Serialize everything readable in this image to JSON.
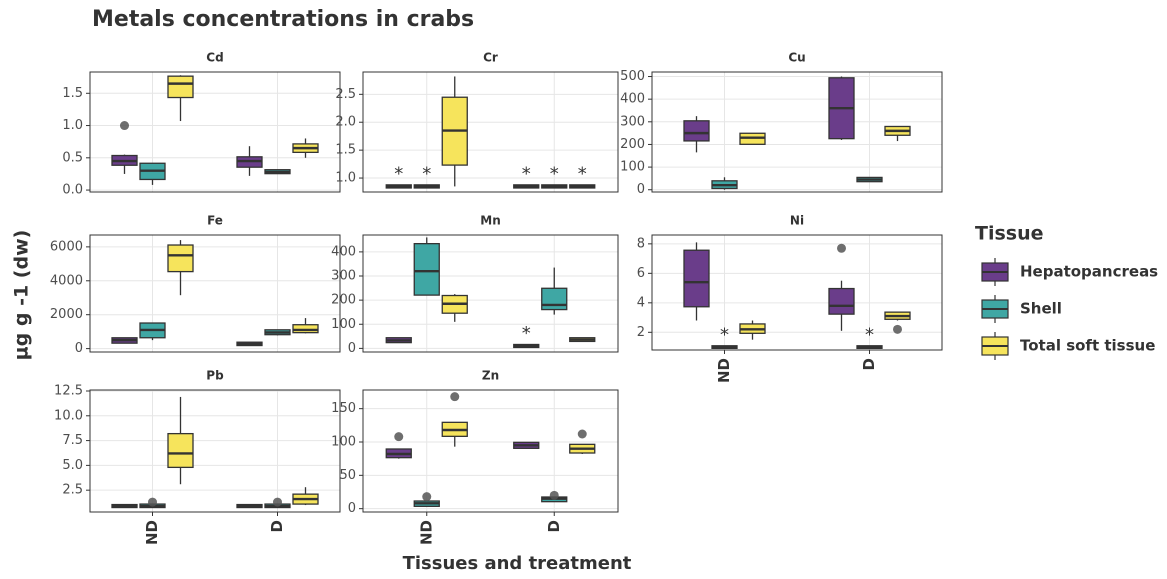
{
  "title": "Metals concentrations in crabs",
  "ylabel": "µg g -1 (dw)",
  "xlabel": "Tissues and treatment",
  "legend": {
    "title": "Tissue",
    "series": [
      {
        "name": "Hepatopancreas",
        "color": "#6a3d8a"
      },
      {
        "name": "Shell",
        "color": "#3fa7a4"
      },
      {
        "name": "Total soft tissue",
        "color": "#f6e45c"
      }
    ]
  },
  "chart_data": [
    {
      "type": "box",
      "title": "Cd",
      "grid": true,
      "ylim": [
        -0.03,
        1.83
      ],
      "yticks": [
        {
          "value": 0,
          "label": "0.0"
        },
        0.5,
        {
          "value": 1,
          "label": "1.0"
        },
        1.5
      ],
      "series": [
        {
          "values": [
            {
              "min": 0.25,
              "q1": 0.4,
              "median": 0.45,
              "q3": 0.52,
              "max": 0.55,
              "outliers": [
                1.0
              ]
            },
            {
              "min": 0.22,
              "q1": 0.37,
              "median": 0.45,
              "q3": 0.5,
              "max": 0.68,
              "outliers": []
            }
          ]
        },
        {
          "values": [
            {
              "min": 0.08,
              "q1": 0.18,
              "median": 0.3,
              "q3": 0.4,
              "max": 0.42,
              "outliers": []
            },
            {
              "min": 0.25,
              "q1": 0.27,
              "median": 0.28,
              "q3": 0.3,
              "max": 0.32,
              "outliers": []
            }
          ]
        },
        {
          "values": [
            {
              "min": 1.07,
              "q1": 1.45,
              "median": 1.65,
              "q3": 1.75,
              "max": 1.78,
              "outliers": []
            },
            {
              "min": 0.5,
              "q1": 0.6,
              "median": 0.65,
              "q3": 0.7,
              "max": 0.8,
              "outliers": []
            }
          ]
        }
      ]
    },
    {
      "type": "box",
      "title": "Cr",
      "grid": true,
      "ylim": [
        0.75,
        2.9
      ],
      "yticks": [
        {
          "value": 1,
          "label": "1.0"
        },
        1.5,
        {
          "value": 2,
          "label": "2.0"
        },
        2.5
      ],
      "series": [
        {
          "values": [
            {
              "min": 0.83,
              "q1": 0.84,
              "median": 0.85,
              "q3": 0.86,
              "max": 0.87,
              "outliers": []
            },
            {
              "min": 0.83,
              "q1": 0.84,
              "median": 0.85,
              "q3": 0.86,
              "max": 0.87,
              "outliers": []
            }
          ],
          "notes": [
            "*",
            "*"
          ]
        },
        {
          "values": [
            {
              "min": 0.83,
              "q1": 0.84,
              "median": 0.85,
              "q3": 0.86,
              "max": 0.87,
              "outliers": []
            },
            {
              "min": 0.83,
              "q1": 0.84,
              "median": 0.85,
              "q3": 0.86,
              "max": 0.87,
              "outliers": []
            }
          ],
          "notes": [
            "*",
            "*"
          ]
        },
        {
          "values": [
            {
              "min": 0.85,
              "q1": 1.25,
              "median": 1.85,
              "q3": 2.43,
              "max": 2.82,
              "outliers": []
            },
            {
              "min": 0.83,
              "q1": 0.84,
              "median": 0.85,
              "q3": 0.86,
              "max": 0.87,
              "outliers": []
            }
          ],
          "notes": [
            null,
            "*"
          ]
        }
      ]
    },
    {
      "type": "box",
      "title": "Cu",
      "grid": true,
      "ylim": [
        -10,
        520
      ],
      "yticks": [
        0,
        100,
        200,
        300,
        400,
        500
      ],
      "series": [
        {
          "values": [
            {
              "min": 165,
              "q1": 220,
              "median": 250,
              "q3": 300,
              "max": 325,
              "outliers": []
            },
            {
              "min": 220,
              "q1": 230,
              "median": 360,
              "q3": 490,
              "max": 500,
              "outliers": []
            }
          ]
        },
        {
          "values": [
            {
              "min": 0,
              "q1": 10,
              "median": 20,
              "q3": 35,
              "max": 55,
              "outliers": []
            },
            {
              "min": 35,
              "q1": 40,
              "median": 45,
              "q3": 50,
              "max": 55,
              "outliers": []
            }
          ]
        },
        {
          "values": [
            {
              "min": 200,
              "q1": 205,
              "median": 230,
              "q3": 245,
              "max": 250,
              "outliers": []
            },
            {
              "min": 215,
              "q1": 245,
              "median": 260,
              "q3": 275,
              "max": 280,
              "outliers": []
            }
          ]
        }
      ]
    },
    {
      "type": "box",
      "title": "Fe",
      "grid": true,
      "ylim": [
        -200,
        6700
      ],
      "yticks": [
        0,
        2000,
        4000,
        6000
      ],
      "series": [
        {
          "values": [
            {
              "min": 300,
              "q1": 380,
              "median": 500,
              "q3": 580,
              "max": 650,
              "outliers": []
            },
            {
              "min": 200,
              "q1": 240,
              "median": 280,
              "q3": 320,
              "max": 350,
              "outliers": []
            }
          ]
        },
        {
          "values": [
            {
              "min": 500,
              "q1": 700,
              "median": 1100,
              "q3": 1450,
              "max": 1500,
              "outliers": []
            },
            {
              "min": 780,
              "q1": 880,
              "median": 950,
              "q3": 1050,
              "max": 1100,
              "outliers": []
            }
          ]
        },
        {
          "values": [
            {
              "min": 3150,
              "q1": 4600,
              "median": 5500,
              "q3": 6050,
              "max": 6400,
              "outliers": []
            },
            {
              "min": 900,
              "q1": 1000,
              "median": 1100,
              "q3": 1350,
              "max": 1800,
              "outliers": []
            }
          ]
        }
      ]
    },
    {
      "type": "box",
      "title": "Mn",
      "grid": true,
      "ylim": [
        -15,
        470
      ],
      "yticks": [
        0,
        100,
        200,
        300,
        400
      ],
      "series": [
        {
          "values": [
            {
              "min": 25,
              "q1": 28,
              "median": 33,
              "q3": 40,
              "max": 45,
              "outliers": []
            },
            {
              "min": 5,
              "q1": 8,
              "median": 10,
              "q3": 12,
              "max": 14,
              "outliers": []
            }
          ],
          "notes": [
            null,
            "*"
          ]
        },
        {
          "values": [
            {
              "min": 220,
              "q1": 225,
              "median": 320,
              "q3": 430,
              "max": 460,
              "outliers": []
            },
            {
              "min": 140,
              "q1": 165,
              "median": 180,
              "q3": 245,
              "max": 335,
              "outliers": []
            }
          ]
        },
        {
          "values": [
            {
              "min": 110,
              "q1": 150,
              "median": 185,
              "q3": 215,
              "max": 225,
              "outliers": []
            },
            {
              "min": 30,
              "q1": 33,
              "median": 36,
              "q3": 40,
              "max": 42,
              "outliers": []
            }
          ]
        }
      ]
    },
    {
      "type": "box",
      "title": "Ni",
      "grid": true,
      "ylim": [
        0.8,
        8.6
      ],
      "yticks": [
        2,
        4,
        6,
        8
      ],
      "categories": [
        "ND",
        "D"
      ],
      "series": [
        {
          "values": [
            {
              "min": 2.8,
              "q1": 3.8,
              "median": 5.4,
              "q3": 7.5,
              "max": 8.1,
              "outliers": []
            },
            {
              "min": 2.1,
              "q1": 3.3,
              "median": 3.8,
              "q3": 4.9,
              "max": 5.5,
              "outliers": [
                7.7
              ]
            }
          ]
        },
        {
          "values": [
            {
              "min": 0.95,
              "q1": 0.98,
              "median": 1.0,
              "q3": 1.02,
              "max": 1.05,
              "outliers": []
            },
            {
              "min": 0.95,
              "q1": 0.98,
              "median": 1.0,
              "q3": 1.02,
              "max": 1.05,
              "outliers": []
            }
          ],
          "notes": [
            "*",
            "*"
          ]
        },
        {
          "values": [
            {
              "min": 1.5,
              "q1": 2.0,
              "median": 2.2,
              "q3": 2.5,
              "max": 2.8,
              "outliers": []
            },
            {
              "min": 2.8,
              "q1": 2.95,
              "median": 3.1,
              "q3": 3.3,
              "max": 3.4,
              "outliers": [
                2.2
              ]
            }
          ]
        }
      ]
    },
    {
      "type": "box",
      "title": "Pb",
      "grid": true,
      "ylim": [
        0.3,
        12.6
      ],
      "yticks": [
        2.5,
        {
          "value": 5,
          "label": "5.0"
        },
        7.5,
        {
          "value": 10,
          "label": "10.0"
        },
        12.5
      ],
      "categories": [
        "ND",
        "D"
      ],
      "series": [
        {
          "values": [
            {
              "min": 0.8,
              "q1": 0.85,
              "median": 0.9,
              "q3": 0.95,
              "max": 1.0,
              "outliers": []
            },
            {
              "min": 0.8,
              "q1": 0.85,
              "median": 0.9,
              "q3": 0.95,
              "max": 1.0,
              "outliers": []
            }
          ]
        },
        {
          "values": [
            {
              "min": 0.8,
              "q1": 0.85,
              "median": 0.9,
              "q3": 1.0,
              "max": 1.05,
              "outliers": [
                1.3
              ]
            },
            {
              "min": 0.8,
              "q1": 0.85,
              "median": 0.9,
              "q3": 1.0,
              "max": 1.1,
              "outliers": [
                1.3
              ]
            }
          ]
        },
        {
          "values": [
            {
              "min": 3.1,
              "q1": 4.9,
              "median": 6.2,
              "q3": 8.1,
              "max": 11.9,
              "outliers": []
            },
            {
              "min": 1.0,
              "q1": 1.2,
              "median": 1.6,
              "q3": 2.0,
              "max": 2.8,
              "outliers": []
            }
          ]
        }
      ]
    },
    {
      "type": "box",
      "title": "Zn",
      "grid": true,
      "ylim": [
        -5,
        178
      ],
      "yticks": [
        0,
        50,
        100,
        150
      ],
      "categories": [
        "ND",
        "D"
      ],
      "series": [
        {
          "values": [
            {
              "min": 75,
              "q1": 78,
              "median": 82,
              "q3": 88,
              "max": 90,
              "outliers": [
                108
              ]
            },
            {
              "min": 90,
              "q1": 92,
              "median": 95,
              "q3": 98,
              "max": 100,
              "outliers": []
            }
          ]
        },
        {
          "values": [
            {
              "min": 3,
              "q1": 5,
              "median": 8,
              "q3": 10,
              "max": 12,
              "outliers": [
                18
              ]
            },
            {
              "min": 10,
              "q1": 12,
              "median": 15,
              "q3": 16,
              "max": 18,
              "outliers": [
                20
              ]
            }
          ]
        },
        {
          "values": [
            {
              "min": 93,
              "q1": 110,
              "median": 118,
              "q3": 128,
              "max": 130,
              "outliers": [
                168
              ]
            },
            {
              "min": 82,
              "q1": 85,
              "median": 90,
              "q3": 95,
              "max": 97,
              "outliers": [
                112
              ]
            }
          ]
        }
      ]
    }
  ]
}
